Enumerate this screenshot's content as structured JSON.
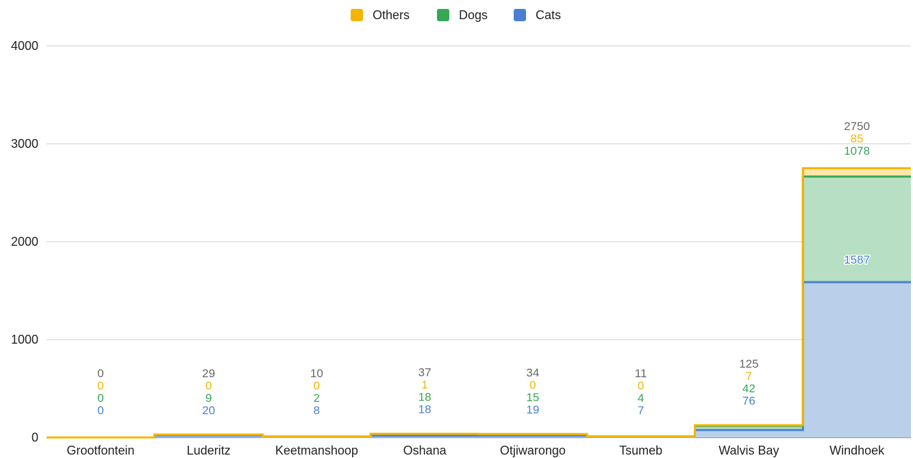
{
  "chart_data": {
    "type": "area",
    "stepped": true,
    "stacked": true,
    "categories": [
      "Grootfontein",
      "Luderitz",
      "Keetmanshoop",
      "Oshana",
      "Otjiwarongo",
      "Tsumeb",
      "Walvis Bay",
      "Windhoek"
    ],
    "series": [
      {
        "name": "Cats",
        "values": [
          0,
          20,
          8,
          18,
          19,
          7,
          76,
          1587
        ],
        "color": "#4a7fd0",
        "fill": "#b9cfea"
      },
      {
        "name": "Dogs",
        "values": [
          0,
          9,
          2,
          18,
          15,
          4,
          42,
          1078
        ],
        "color": "#34a853",
        "fill": "#b7dfc4"
      },
      {
        "name": "Others",
        "values": [
          0,
          0,
          0,
          1,
          0,
          0,
          7,
          85
        ],
        "color": "#f4b400",
        "fill": "#fde7a6"
      }
    ],
    "totals": [
      0,
      29,
      10,
      37,
      34,
      11,
      125,
      2750
    ],
    "legend_order": [
      "Others",
      "Dogs",
      "Cats"
    ],
    "legend_position": "top-center",
    "total_label_color": "#666666",
    "ylim": [
      0,
      4000
    ],
    "yticks": [
      0,
      1000,
      2000,
      3000,
      4000
    ],
    "grid": true
  }
}
